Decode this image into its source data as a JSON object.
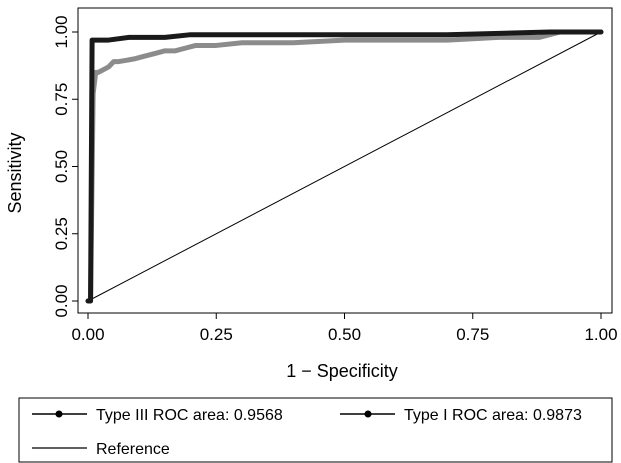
{
  "chart_data": {
    "type": "line",
    "title": "",
    "xlabel": "1 − Specificity",
    "ylabel": "Sensitivity",
    "xlim": [
      0,
      1
    ],
    "ylim": [
      0,
      1
    ],
    "x_ticks": [
      "0.00",
      "0.25",
      "0.50",
      "0.75",
      "1.00"
    ],
    "y_ticks": [
      "0.00",
      "0.25",
      "0.50",
      "0.75",
      "1.00"
    ],
    "grid": false,
    "legend_position": "bottom",
    "series": [
      {
        "name": "Type III ROC area: 0.9568",
        "color": "#8c8c8c",
        "x": [
          0.0,
          0.005,
          0.01,
          0.015,
          0.02,
          0.03,
          0.04,
          0.05,
          0.06,
          0.09,
          0.11,
          0.13,
          0.15,
          0.17,
          0.19,
          0.21,
          0.25,
          0.3,
          0.4,
          0.5,
          0.6,
          0.7,
          0.8,
          0.88,
          0.9,
          0.92,
          1.0
        ],
        "y": [
          0.0,
          0.0,
          0.77,
          0.85,
          0.85,
          0.86,
          0.87,
          0.89,
          0.89,
          0.9,
          0.91,
          0.92,
          0.93,
          0.93,
          0.94,
          0.95,
          0.95,
          0.96,
          0.96,
          0.97,
          0.97,
          0.97,
          0.98,
          0.98,
          0.99,
          1.0,
          1.0
        ]
      },
      {
        "name": "Type I ROC area: 0.9873",
        "color": "#1a1a1a",
        "x": [
          0.0,
          0.005,
          0.008,
          0.01,
          0.04,
          0.08,
          0.15,
          0.2,
          0.3,
          0.5,
          0.7,
          0.9,
          1.0
        ],
        "y": [
          0.0,
          0.0,
          0.97,
          0.97,
          0.97,
          0.98,
          0.98,
          0.99,
          0.99,
          0.99,
          0.99,
          1.0,
          1.0
        ]
      },
      {
        "name": "Reference",
        "color": "#000000",
        "x": [
          0,
          1
        ],
        "y": [
          0,
          1
        ]
      }
    ]
  }
}
